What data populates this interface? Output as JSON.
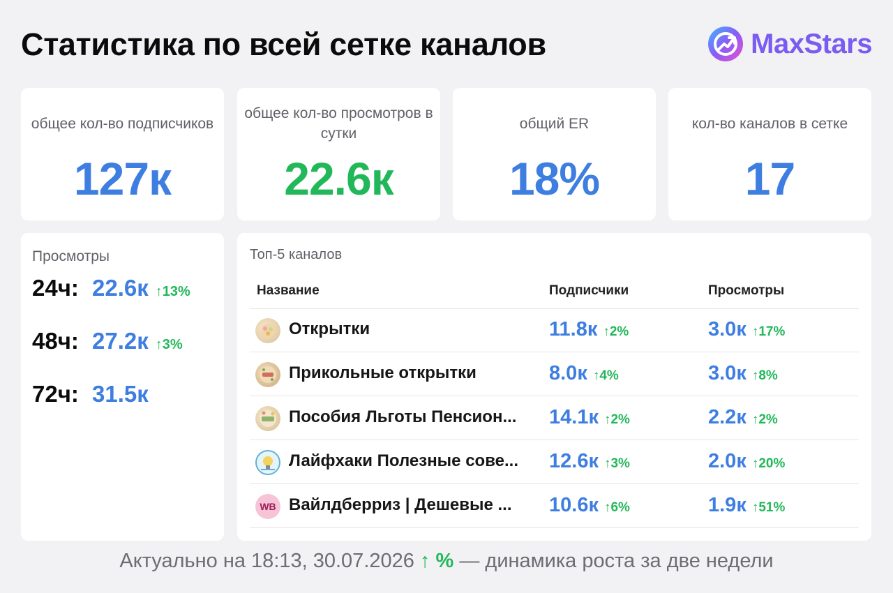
{
  "header": {
    "title": "Статистика по всей сетке каналов",
    "brand": "MaxStars",
    "brand_color": "#7a5cf0"
  },
  "stats": [
    {
      "label": "общее кол-во подписчиков",
      "value": "127к",
      "color": "blue"
    },
    {
      "label": "общее кол-во просмотров в сутки",
      "value": "22.6к",
      "color": "green"
    },
    {
      "label": "общий ER",
      "value": "18%",
      "color": "blue"
    },
    {
      "label": "кол-во каналов в сетке",
      "value": "17",
      "color": "blue"
    }
  ],
  "views": {
    "title": "Просмотры",
    "rows": [
      {
        "period": "24ч:",
        "value": "22.6к",
        "change": "↑13%"
      },
      {
        "period": "48ч:",
        "value": "27.2к",
        "change": "↑3%"
      },
      {
        "period": "72ч:",
        "value": "31.5к",
        "change": ""
      }
    ]
  },
  "top_channels": {
    "title": "Топ-5 каналов",
    "columns": {
      "name": "Название",
      "subscribers": "Подписчики",
      "views": "Просмотры"
    },
    "rows": [
      {
        "name": "Открытки",
        "subs": "11.8к",
        "subs_change": "↑2%",
        "views": "3.0к",
        "views_change": "↑17%",
        "icon": "postcard-avatar-icon"
      },
      {
        "name": "Прикольные открытки",
        "subs": "8.0к",
        "subs_change": "↑4%",
        "views": "3.0к",
        "views_change": "↑8%",
        "icon": "funny-postcard-avatar-icon"
      },
      {
        "name": "Пособия Льготы Пенсион...",
        "subs": "14.1к",
        "subs_change": "↑2%",
        "views": "2.2к",
        "views_change": "↑2%",
        "icon": "benefits-avatar-icon"
      },
      {
        "name": "Лайфхаки Полезные сове...",
        "subs": "12.6к",
        "subs_change": "↑3%",
        "views": "2.0к",
        "views_change": "↑20%",
        "icon": "lifehacks-avatar-icon"
      },
      {
        "name": "Вайлдберриз | Дешевые ...",
        "subs": "10.6к",
        "subs_change": "↑6%",
        "views": "1.9к",
        "views_change": "↑51%",
        "icon": "wb-avatar-icon",
        "icon_text": "WB"
      }
    ]
  },
  "footer": {
    "prefix": "Актуально на 18:13, 30.07.2026",
    "legend_symbol": "↑ %",
    "suffix": "— динамика роста за две недели"
  }
}
